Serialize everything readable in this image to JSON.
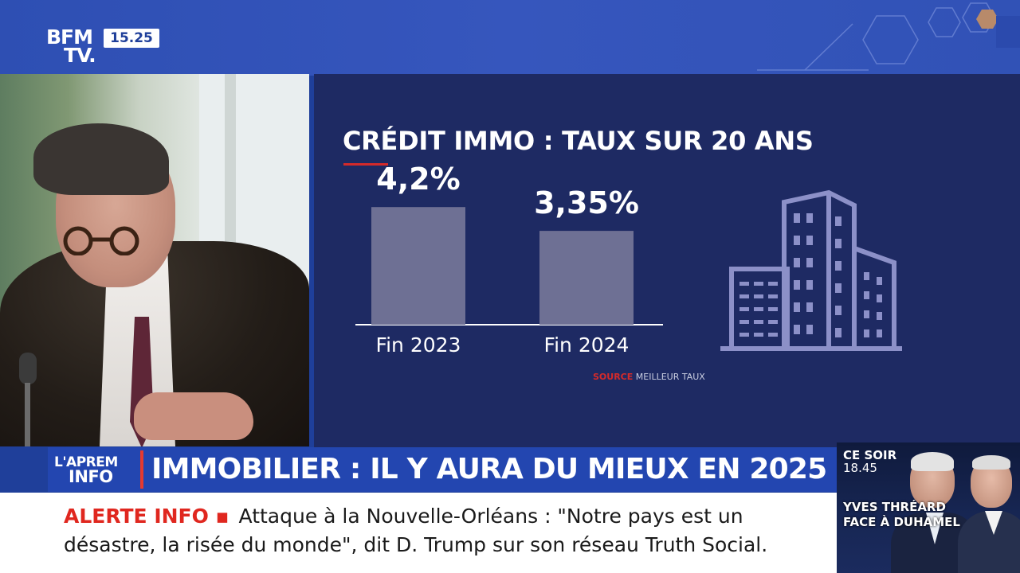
{
  "channel": {
    "logo_line1": "BFM",
    "logo_line2": "TV.",
    "clock": "15.25"
  },
  "chart_data": {
    "type": "bar",
    "title": "CRÉDIT IMMO : TAUX SUR 20 ANS",
    "categories": [
      "Fin 2023",
      "Fin 2024"
    ],
    "values": [
      4.2,
      3.35
    ],
    "value_labels": [
      "4,2%",
      "3,35%"
    ],
    "ylim": [
      0,
      5.2
    ],
    "xlabel": "",
    "ylabel": "",
    "bar_color": "#6e7094",
    "grid": false,
    "source_label": "SOURCE",
    "source_name": "MEILLEUR TAUX"
  },
  "lower_third": {
    "program_line1": "L'APREM",
    "program_line2": "INFO",
    "headline": "IMMOBILIER : IL Y AURA DU MIEUX EN 2025"
  },
  "ticker": {
    "label": "ALERTE INFO ▪",
    "text": "Attaque à la Nouvelle-Orléans : \"Notre pays est un désastre, la risée du monde\", dit D. Trump sur son réseau Truth Social."
  },
  "promo": {
    "tonight": "CE SOIR",
    "time": "18.45",
    "show_line1": "YVES THRÉARD",
    "show_line2": "FACE À DUHAMEL"
  },
  "icons": {
    "building": "building-icon",
    "microphone": "microphone-icon"
  },
  "colors": {
    "brand_blue": "#2346b0",
    "panel": "#1e2a63",
    "alert_red": "#e0271f"
  }
}
